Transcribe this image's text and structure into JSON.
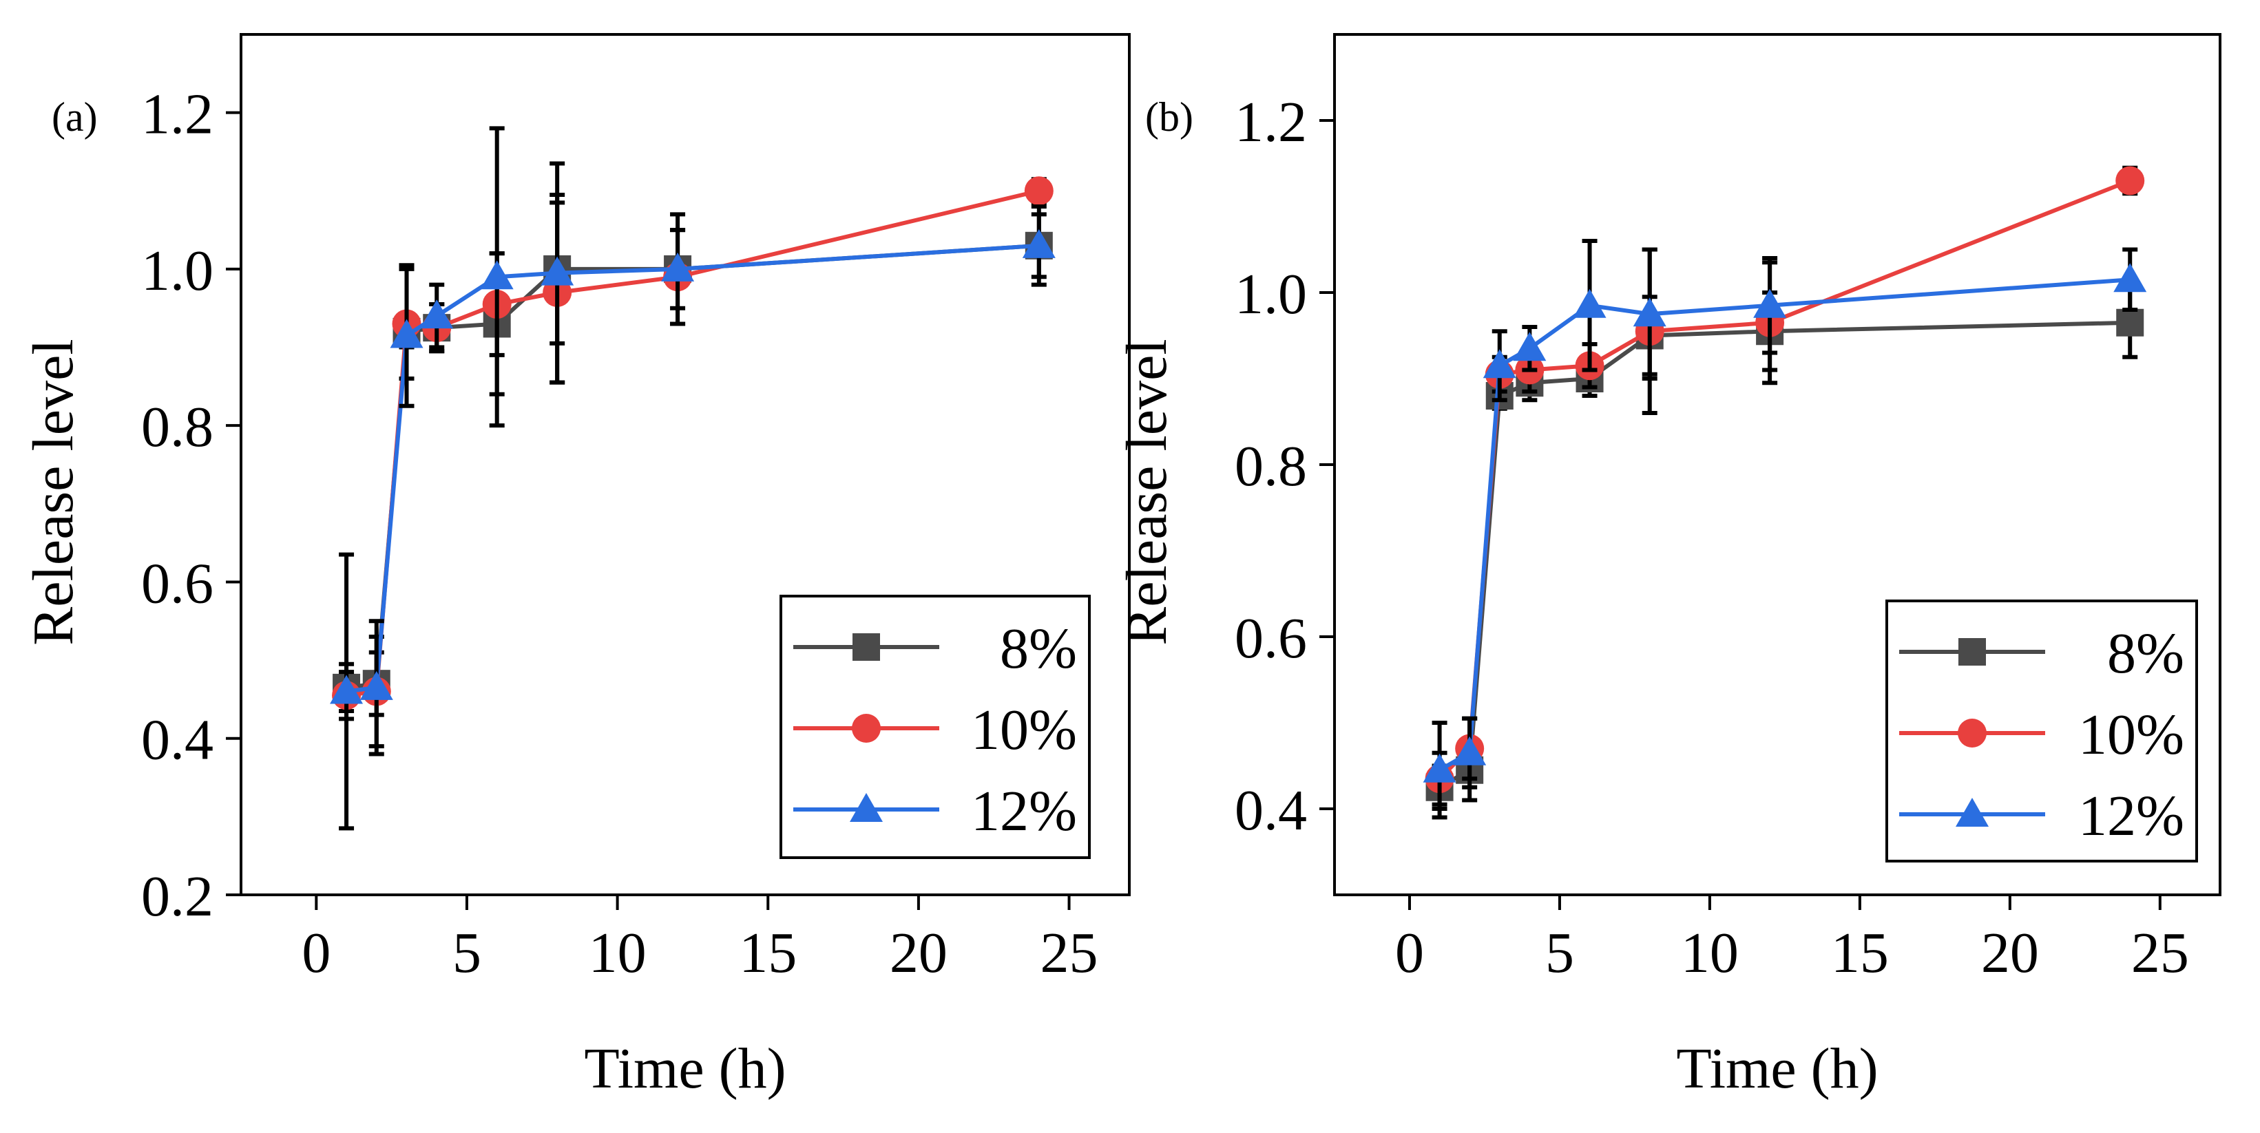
{
  "colors": {
    "8%": "#4a4a4a",
    "10%": "#e8403e",
    "12%": "#2a6ee0"
  },
  "chart_data": [
    {
      "type": "line",
      "panel_label": "(a)",
      "xlabel": "Time (h)",
      "ylabel": "Release level",
      "xlim": [
        -2.5,
        27
      ],
      "ylim": [
        0.2,
        1.3
      ],
      "xticks": [
        0,
        5,
        10,
        15,
        20,
        25
      ],
      "yticks": [
        0.2,
        0.4,
        0.6,
        0.8,
        1.0,
        1.2
      ],
      "ytick_labels": [
        "0.2",
        "0.4",
        "0.6",
        "0.8",
        "1.0",
        "1.2"
      ],
      "legend_position": "lower-right",
      "x": [
        1,
        2,
        3,
        4,
        6,
        8,
        12,
        24
      ],
      "series": [
        {
          "name": "8%",
          "marker": "square",
          "values": [
            0.465,
            0.47,
            0.92,
            0.925,
            0.93,
            1.0,
            1.0,
            1.03
          ],
          "errors": [
            0.03,
            0.04,
            0.02,
            0.03,
            0.09,
            0.095,
            0.05,
            0.04
          ]
        },
        {
          "name": "10%",
          "marker": "circle",
          "values": [
            0.455,
            0.46,
            0.93,
            0.925,
            0.955,
            0.97,
            0.99,
            1.1
          ],
          "errors": [
            0.03,
            0.07,
            0.07,
            0.03,
            0.065,
            0.115,
            0.06,
            0.015
          ]
        },
        {
          "name": "12%",
          "marker": "triangle",
          "values": [
            0.46,
            0.465,
            0.915,
            0.94,
            0.99,
            0.995,
            1.0,
            1.03
          ],
          "errors": [
            0.175,
            0.085,
            0.09,
            0.04,
            0.19,
            0.14,
            0.07,
            0.05
          ]
        }
      ]
    },
    {
      "type": "line",
      "panel_label": "(b)",
      "xlabel": "Time (h)",
      "ylabel": "Release level",
      "xlim": [
        -2.5,
        27
      ],
      "ylim": [
        0.3,
        1.3
      ],
      "xticks": [
        0,
        5,
        10,
        15,
        20,
        25
      ],
      "yticks": [
        0.4,
        0.6,
        0.8,
        1.0,
        1.2
      ],
      "ytick_labels": [
        "0.4",
        "0.6",
        "0.8",
        "1.0",
        "1.2"
      ],
      "legend_position": "lower-right",
      "x": [
        1,
        2,
        3,
        4,
        6,
        8,
        12,
        24
      ],
      "series": [
        {
          "name": "8%",
          "marker": "square",
          "values": [
            0.425,
            0.445,
            0.88,
            0.895,
            0.9,
            0.95,
            0.955,
            0.965
          ],
          "errors": [
            0.025,
            0.035,
            0.015,
            0.02,
            0.02,
            0.045,
            0.045,
            0.04
          ]
        },
        {
          "name": "10%",
          "marker": "circle",
          "values": [
            0.435,
            0.47,
            0.905,
            0.91,
            0.915,
            0.955,
            0.965,
            1.13
          ],
          "errors": [
            0.03,
            0.035,
            0.02,
            0.025,
            0.025,
            0.095,
            0.07,
            0.015
          ]
        },
        {
          "name": "12%",
          "marker": "triangle",
          "values": [
            0.445,
            0.465,
            0.915,
            0.935,
            0.985,
            0.975,
            0.985,
            1.015
          ],
          "errors": [
            0.055,
            0.04,
            0.04,
            0.025,
            0.075,
            0.075,
            0.055,
            0.035
          ]
        }
      ]
    }
  ]
}
